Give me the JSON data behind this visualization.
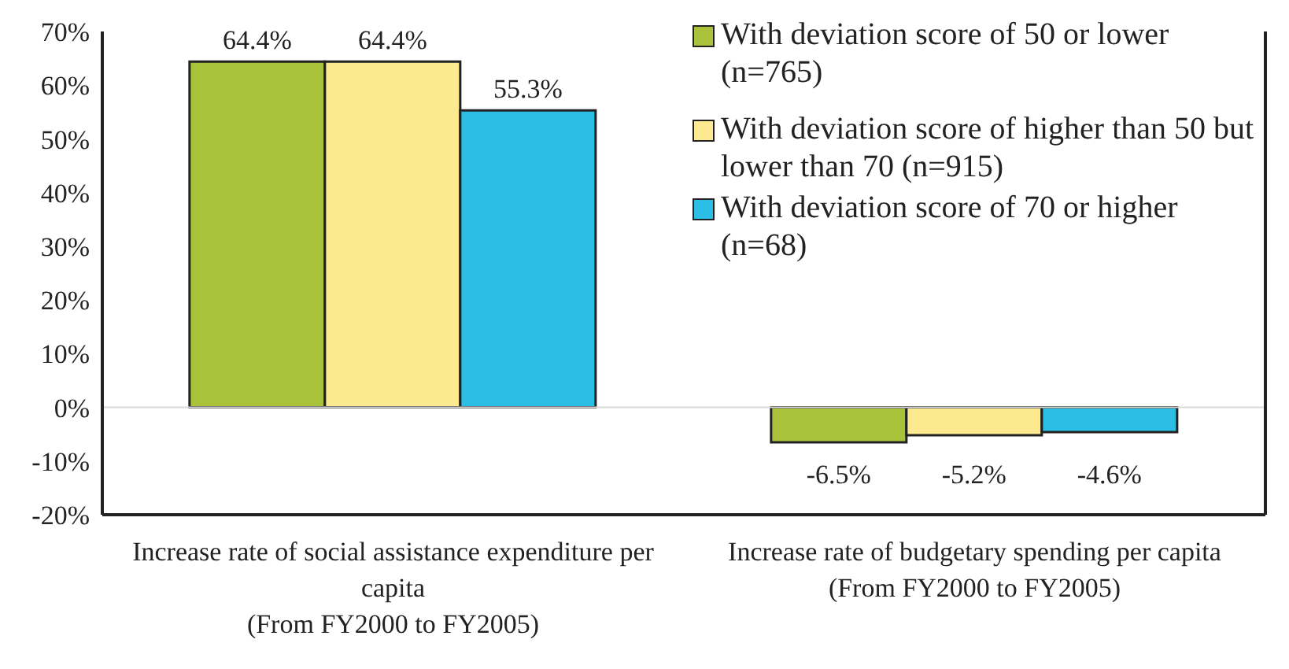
{
  "chart_data": {
    "type": "bar",
    "categories": [
      "Increase rate of social assistance expenditure per capita (From FY2000 to FY2005)",
      "Increase rate of budgetary spending per capita (From FY2000 to FY2005)"
    ],
    "series": [
      {
        "name": "With deviation score of 50 or lower (n=765)",
        "color": "#a9c23a",
        "values": [
          64.4,
          -6.5
        ],
        "value_labels": [
          "64.4%",
          "-6.5%"
        ]
      },
      {
        "name": "With deviation score of higher than 50 but lower than 70 (n=915)",
        "color": "#fde98f",
        "values": [
          64.4,
          -5.2
        ],
        "value_labels": [
          "64.4%",
          "-5.2%"
        ]
      },
      {
        "name": "With deviation score of 70 or higher (n=68)",
        "color": "#2bbfe6",
        "values": [
          55.3,
          -4.6
        ],
        "value_labels": [
          "55.3%",
          "-4.6%"
        ]
      }
    ],
    "ylim": [
      -20,
      70
    ],
    "yticks": [
      {
        "value": -20,
        "label": "-20%"
      },
      {
        "value": -10,
        "label": "-10%"
      },
      {
        "value": 0,
        "label": "0%"
      },
      {
        "value": 10,
        "label": "10%"
      },
      {
        "value": 20,
        "label": "20%"
      },
      {
        "value": 30,
        "label": "30%"
      },
      {
        "value": 40,
        "label": "40%"
      },
      {
        "value": 50,
        "label": "50%"
      },
      {
        "value": 60,
        "label": "60%"
      },
      {
        "value": 70,
        "label": "70%"
      }
    ],
    "ref_lines": [
      {
        "axis": "y",
        "value": 0,
        "color": "#d9d9d9"
      }
    ],
    "legend": "top right",
    "grid": false
  }
}
